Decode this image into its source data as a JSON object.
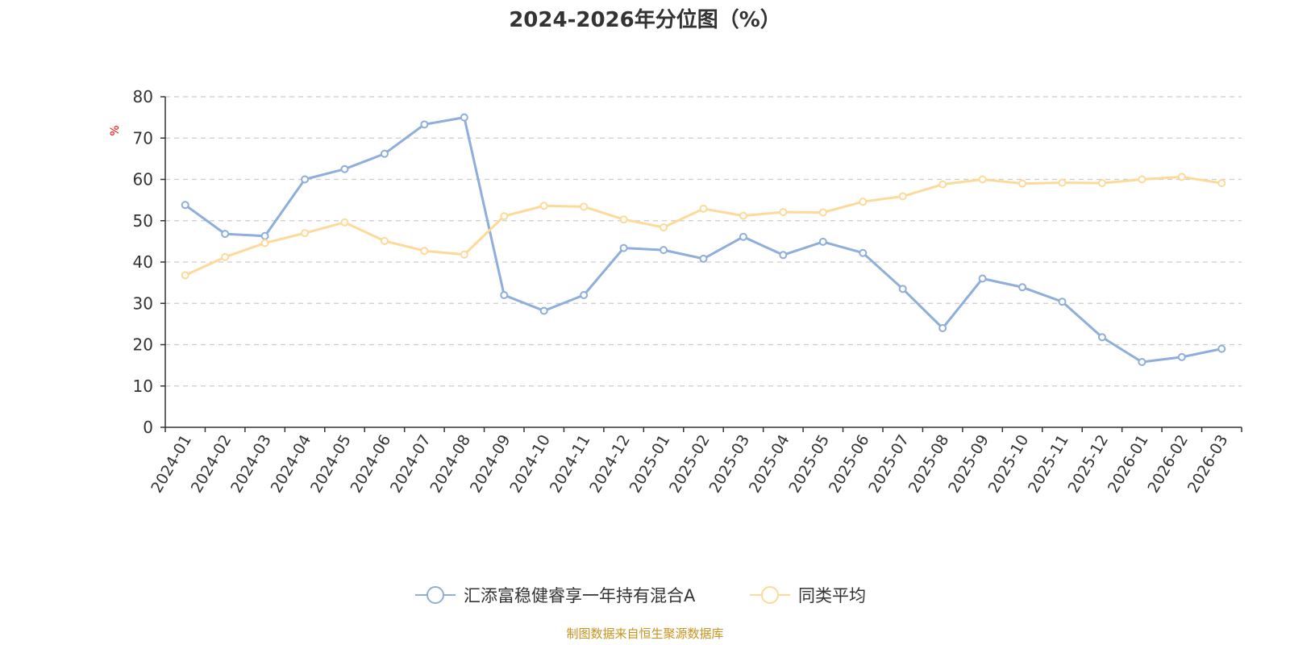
{
  "chart_data": {
    "type": "line",
    "title": "2024-2026年分位图（%）",
    "ylabel": "%",
    "xlabel": "",
    "ylim": [
      0,
      80
    ],
    "yticks": [
      0,
      10,
      20,
      30,
      40,
      50,
      60,
      70,
      80
    ],
    "grid": true,
    "legend_placement": "bottom-center",
    "categories": [
      "2024-01",
      "2024-02",
      "2024-03",
      "2024-04",
      "2024-05",
      "2024-06",
      "2024-07",
      "2024-08",
      "2024-09",
      "2024-10",
      "2024-11",
      "2024-12",
      "2025-01",
      "2025-02",
      "2025-03",
      "2025-04",
      "2025-05",
      "2025-06",
      "2025-07",
      "2025-08",
      "2025-09",
      "2025-10",
      "2025-11",
      "2025-12",
      "2026-01",
      "2026-02",
      "2026-03"
    ],
    "series": [
      {
        "name": "汇添富稳健睿享一年持有混合A",
        "color": "#8eaedb",
        "values": [
          53.8,
          46.8,
          46.3,
          60.0,
          62.5,
          66.2,
          73.3,
          75.0,
          32.0,
          28.2,
          32.0,
          43.4,
          42.9,
          40.8,
          46.1,
          41.7,
          44.9,
          42.2,
          33.5,
          24.0,
          36.0,
          33.9,
          30.4,
          21.8,
          15.8,
          17.0,
          19.0
        ]
      },
      {
        "name": "同类平均",
        "color": "#fdd99a",
        "values": [
          36.8,
          41.2,
          44.6,
          47.0,
          49.6,
          45.1,
          42.7,
          41.8,
          51.1,
          53.6,
          53.4,
          50.3,
          48.4,
          52.9,
          51.2,
          52.1,
          52.0,
          54.6,
          55.9,
          58.8,
          60.0,
          59.0,
          59.2,
          59.1,
          60.0,
          60.6,
          59.1
        ]
      }
    ],
    "source_note": "制图数据来自恒生聚源数据库"
  }
}
